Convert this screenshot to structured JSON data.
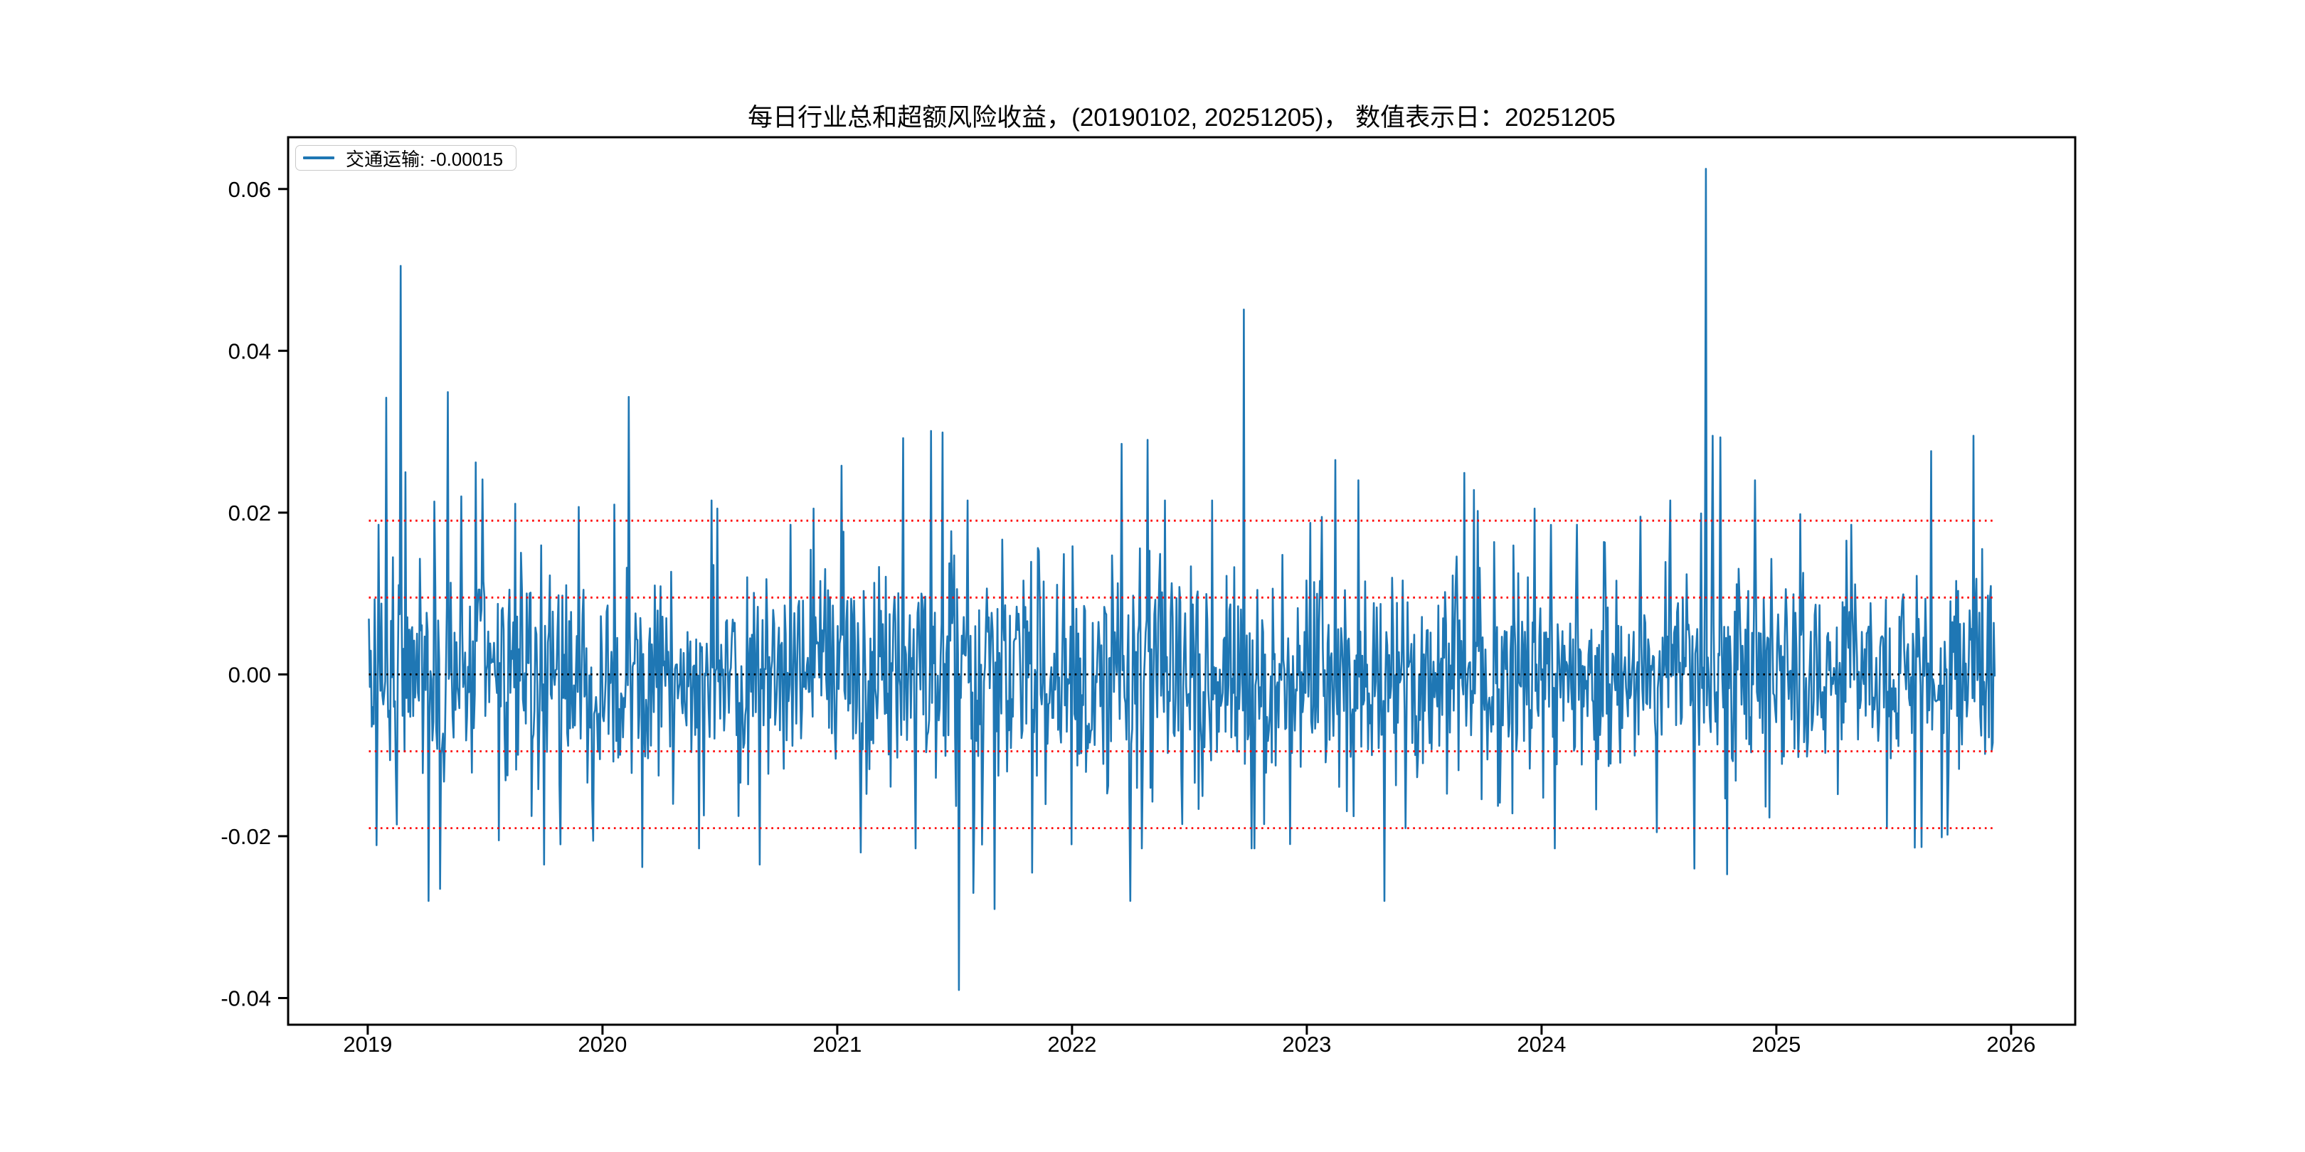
{
  "figure": {
    "background": "#ffffff"
  },
  "chart_data": {
    "type": "line",
    "title": "每日行业总和超额风险收益，(20190102, 20251205)， 数值表示日：20251205",
    "xlabel": "",
    "ylabel": "",
    "legend_label": "交通运输: -0.00015",
    "legend_position": "upper-left",
    "grid": false,
    "x_ticks": [
      "2019",
      "2020",
      "2021",
      "2022",
      "2023",
      "2024",
      "2025",
      "2026"
    ],
    "x_tick_values": [
      2019,
      2020,
      2021,
      2022,
      2023,
      2024,
      2025,
      2026
    ],
    "y_ticks": [
      "0.06",
      "0.04",
      "0.02",
      "0.00",
      "-0.02",
      "-0.04"
    ],
    "y_tick_values": [
      0.06,
      0.04,
      0.02,
      0.0,
      -0.02,
      -0.04
    ],
    "xlim": [
      2018.661,
      2026.273
    ],
    "ylim": [
      -0.0433,
      0.0664
    ],
    "date_range": [
      "20190102",
      "20251205"
    ],
    "value_date": "20251205",
    "axis_color": "#000000",
    "reference_lines": [
      {
        "y": 0.019,
        "color": "#ff0000",
        "style": "dotted"
      },
      {
        "y": 0.0095,
        "color": "#ff0000",
        "style": "dotted"
      },
      {
        "y": 0.0,
        "color": "#000000",
        "style": "dotted"
      },
      {
        "y": -0.0095,
        "color": "#ff0000",
        "style": "dotted"
      },
      {
        "y": -0.019,
        "color": "#ff0000",
        "style": "dotted"
      }
    ],
    "series": [
      {
        "name": "交通运输",
        "color": "#1f77b4",
        "last_value": -0.00015,
        "x_start": 2019.005,
        "x_end": 2025.93,
        "n_points": 1690,
        "seed": 20251205,
        "sigma_by_year": [
          0.0063,
          0.0065,
          0.0073,
          0.0071,
          0.0068,
          0.0066,
          0.006
        ],
        "tail_prob": 0.05,
        "tail_scale": 1.75,
        "noise_clamp": 0.0215,
        "spikes": [
          [
            0.08,
            0.0342
          ],
          [
            0.12,
            -0.012
          ],
          [
            0.14,
            0.0505
          ],
          [
            0.16,
            0.025
          ],
          [
            0.26,
            -0.028
          ],
          [
            0.31,
            -0.0265
          ],
          [
            0.34,
            0.0349
          ],
          [
            0.4,
            0.022
          ],
          [
            0.46,
            0.0262
          ],
          [
            0.49,
            0.0241
          ],
          [
            0.56,
            -0.0205
          ],
          [
            0.63,
            0.0211
          ],
          [
            0.75,
            -0.0235
          ],
          [
            0.82,
            -0.021
          ],
          [
            0.9,
            0.0207
          ],
          [
            1.05,
            0.021
          ],
          [
            1.11,
            0.0343
          ],
          [
            1.17,
            -0.0238
          ],
          [
            1.3,
            -0.016
          ],
          [
            1.49,
            0.0205
          ],
          [
            1.58,
            -0.0175
          ],
          [
            1.67,
            -0.0235
          ],
          [
            1.8,
            0.0185
          ],
          [
            1.9,
            0.0205
          ],
          [
            2.02,
            0.0258
          ],
          [
            2.1,
            -0.022
          ],
          [
            2.28,
            0.0292
          ],
          [
            2.4,
            0.0301
          ],
          [
            2.45,
            0.0299
          ],
          [
            2.52,
            -0.039
          ],
          [
            2.58,
            -0.027
          ],
          [
            2.67,
            -0.029
          ],
          [
            2.83,
            -0.0245
          ],
          [
            3.0,
            -0.021
          ],
          [
            3.21,
            0.0285
          ],
          [
            3.25,
            -0.028
          ],
          [
            3.32,
            0.029
          ],
          [
            3.47,
            -0.0185
          ],
          [
            3.73,
            0.0451
          ],
          [
            3.82,
            -0.0185
          ],
          [
            4.12,
            0.0265
          ],
          [
            4.22,
            0.024
          ],
          [
            4.33,
            -0.028
          ],
          [
            4.42,
            -0.019
          ],
          [
            4.67,
            0.0249
          ],
          [
            4.71,
            0.0228
          ],
          [
            4.97,
            0.0205
          ],
          [
            5.15,
            0.0185
          ],
          [
            5.42,
            0.0195
          ],
          [
            5.49,
            -0.0195
          ],
          [
            5.65,
            -0.024
          ],
          [
            5.7,
            0.0625
          ],
          [
            5.73,
            0.0295
          ],
          [
            5.76,
            0.0293
          ],
          [
            5.79,
            -0.0247
          ],
          [
            5.91,
            0.024
          ],
          [
            6.1,
            0.0198
          ],
          [
            6.32,
            0.0185
          ],
          [
            6.47,
            -0.019
          ],
          [
            6.59,
            -0.0214
          ],
          [
            6.66,
            0.0276
          ],
          [
            6.73,
            -0.0198
          ],
          [
            6.84,
            0.0295
          ],
          [
            6.875,
            0.0155
          ]
        ]
      }
    ]
  }
}
